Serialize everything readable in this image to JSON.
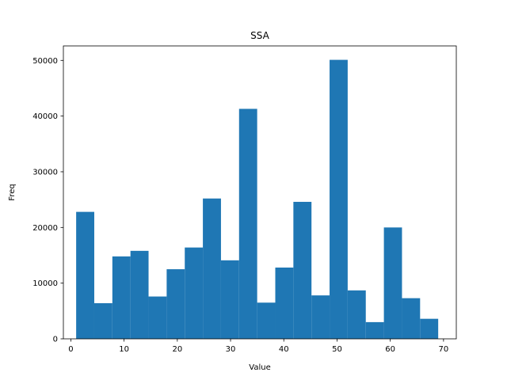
{
  "chart_data": {
    "type": "bar",
    "title": "SSA",
    "xlabel": "Value",
    "ylabel": "Freq",
    "xlim": [
      -1.4,
      72.4
    ],
    "ylim": [
      0,
      52600
    ],
    "xticks": [
      0,
      10,
      20,
      30,
      40,
      50,
      60,
      70
    ],
    "yticks": [
      0,
      10000,
      20000,
      30000,
      40000,
      50000
    ],
    "bar_color": "#1f77b4",
    "grid": false,
    "bins": [
      {
        "x0": 1.0,
        "x1": 4.4,
        "value": 22800
      },
      {
        "x0": 4.4,
        "x1": 7.8,
        "value": 6400
      },
      {
        "x0": 7.8,
        "x1": 11.2,
        "value": 14800
      },
      {
        "x0": 11.2,
        "x1": 14.6,
        "value": 15800
      },
      {
        "x0": 14.6,
        "x1": 18.0,
        "value": 7600
      },
      {
        "x0": 18.0,
        "x1": 21.4,
        "value": 12500
      },
      {
        "x0": 21.4,
        "x1": 24.8,
        "value": 16400
      },
      {
        "x0": 24.8,
        "x1": 28.2,
        "value": 25200
      },
      {
        "x0": 28.2,
        "x1": 31.6,
        "value": 14100
      },
      {
        "x0": 31.6,
        "x1": 35.0,
        "value": 41300
      },
      {
        "x0": 35.0,
        "x1": 38.4,
        "value": 6500
      },
      {
        "x0": 38.4,
        "x1": 41.8,
        "value": 12800
      },
      {
        "x0": 41.8,
        "x1": 45.2,
        "value": 24600
      },
      {
        "x0": 45.2,
        "x1": 48.6,
        "value": 7800
      },
      {
        "x0": 48.6,
        "x1": 52.0,
        "value": 50100
      },
      {
        "x0": 52.0,
        "x1": 55.4,
        "value": 8700
      },
      {
        "x0": 55.4,
        "x1": 58.8,
        "value": 3000
      },
      {
        "x0": 58.8,
        "x1": 62.2,
        "value": 20000
      },
      {
        "x0": 62.2,
        "x1": 65.6,
        "value": 7300
      },
      {
        "x0": 65.6,
        "x1": 69.0,
        "value": 3600
      }
    ]
  }
}
